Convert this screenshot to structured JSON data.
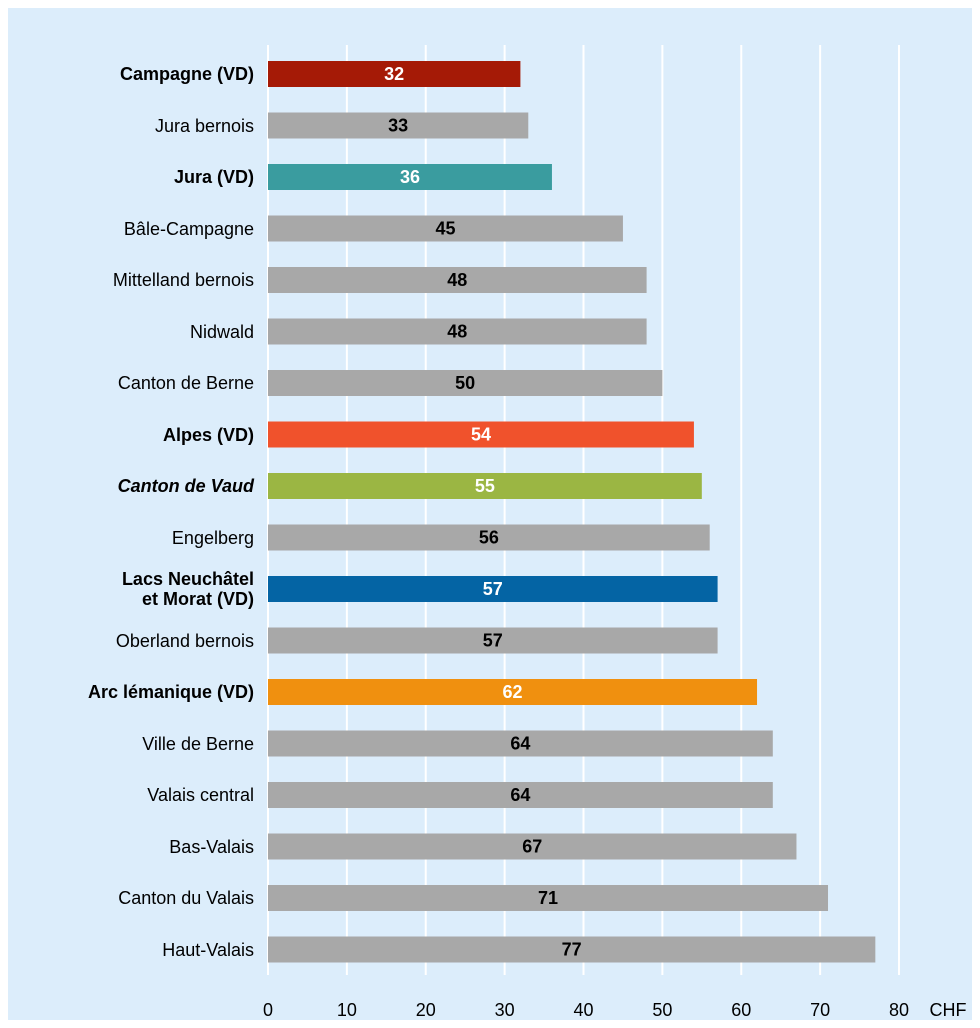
{
  "chart_data": {
    "type": "bar",
    "orientation": "horizontal",
    "categories": [
      "Campagne (VD)",
      "Jura bernois",
      "Jura (VD)",
      "Bâle-Campagne",
      "Mittelland bernois",
      "Nidwald",
      "Canton de Berne",
      "Alpes (VD)",
      "Canton de Vaud",
      "Engelberg",
      "Lacs Neuchâtel\net Morat (VD)",
      "Oberland bernois",
      "Arc lémanique (VD)",
      "Ville de Berne",
      "Valais central",
      "Bas-Valais",
      "Canton du Valais",
      "Haut-Valais"
    ],
    "values": [
      32,
      33,
      36,
      45,
      48,
      48,
      50,
      54,
      55,
      56,
      57,
      57,
      62,
      64,
      64,
      67,
      71,
      77
    ],
    "colors": [
      "#a51a06",
      "#a8a8a8",
      "#3a9c9f",
      "#a8a8a8",
      "#a8a8a8",
      "#a8a8a8",
      "#a8a8a8",
      "#f0522c",
      "#9bb643",
      "#a8a8a8",
      "#0464a4",
      "#a8a8a8",
      "#f0900f",
      "#a8a8a8",
      "#a8a8a8",
      "#a8a8a8",
      "#a8a8a8",
      "#a8a8a8"
    ],
    "value_label_colors": [
      "#ffffff",
      "#000000",
      "#ffffff",
      "#000000",
      "#000000",
      "#000000",
      "#000000",
      "#ffffff",
      "#ffffff",
      "#000000",
      "#ffffff",
      "#000000",
      "#ffffff",
      "#000000",
      "#000000",
      "#000000",
      "#000000",
      "#000000"
    ],
    "label_styles": [
      "bold",
      "normal",
      "bold",
      "normal",
      "normal",
      "normal",
      "normal",
      "bold",
      "bold-italic",
      "normal",
      "bold",
      "normal",
      "bold",
      "normal",
      "normal",
      "normal",
      "normal",
      "normal"
    ],
    "xlim": [
      0,
      80
    ],
    "xticks": [
      0,
      10,
      20,
      30,
      40,
      50,
      60,
      70,
      80
    ],
    "x_unit": "CHF",
    "grid": true
  }
}
